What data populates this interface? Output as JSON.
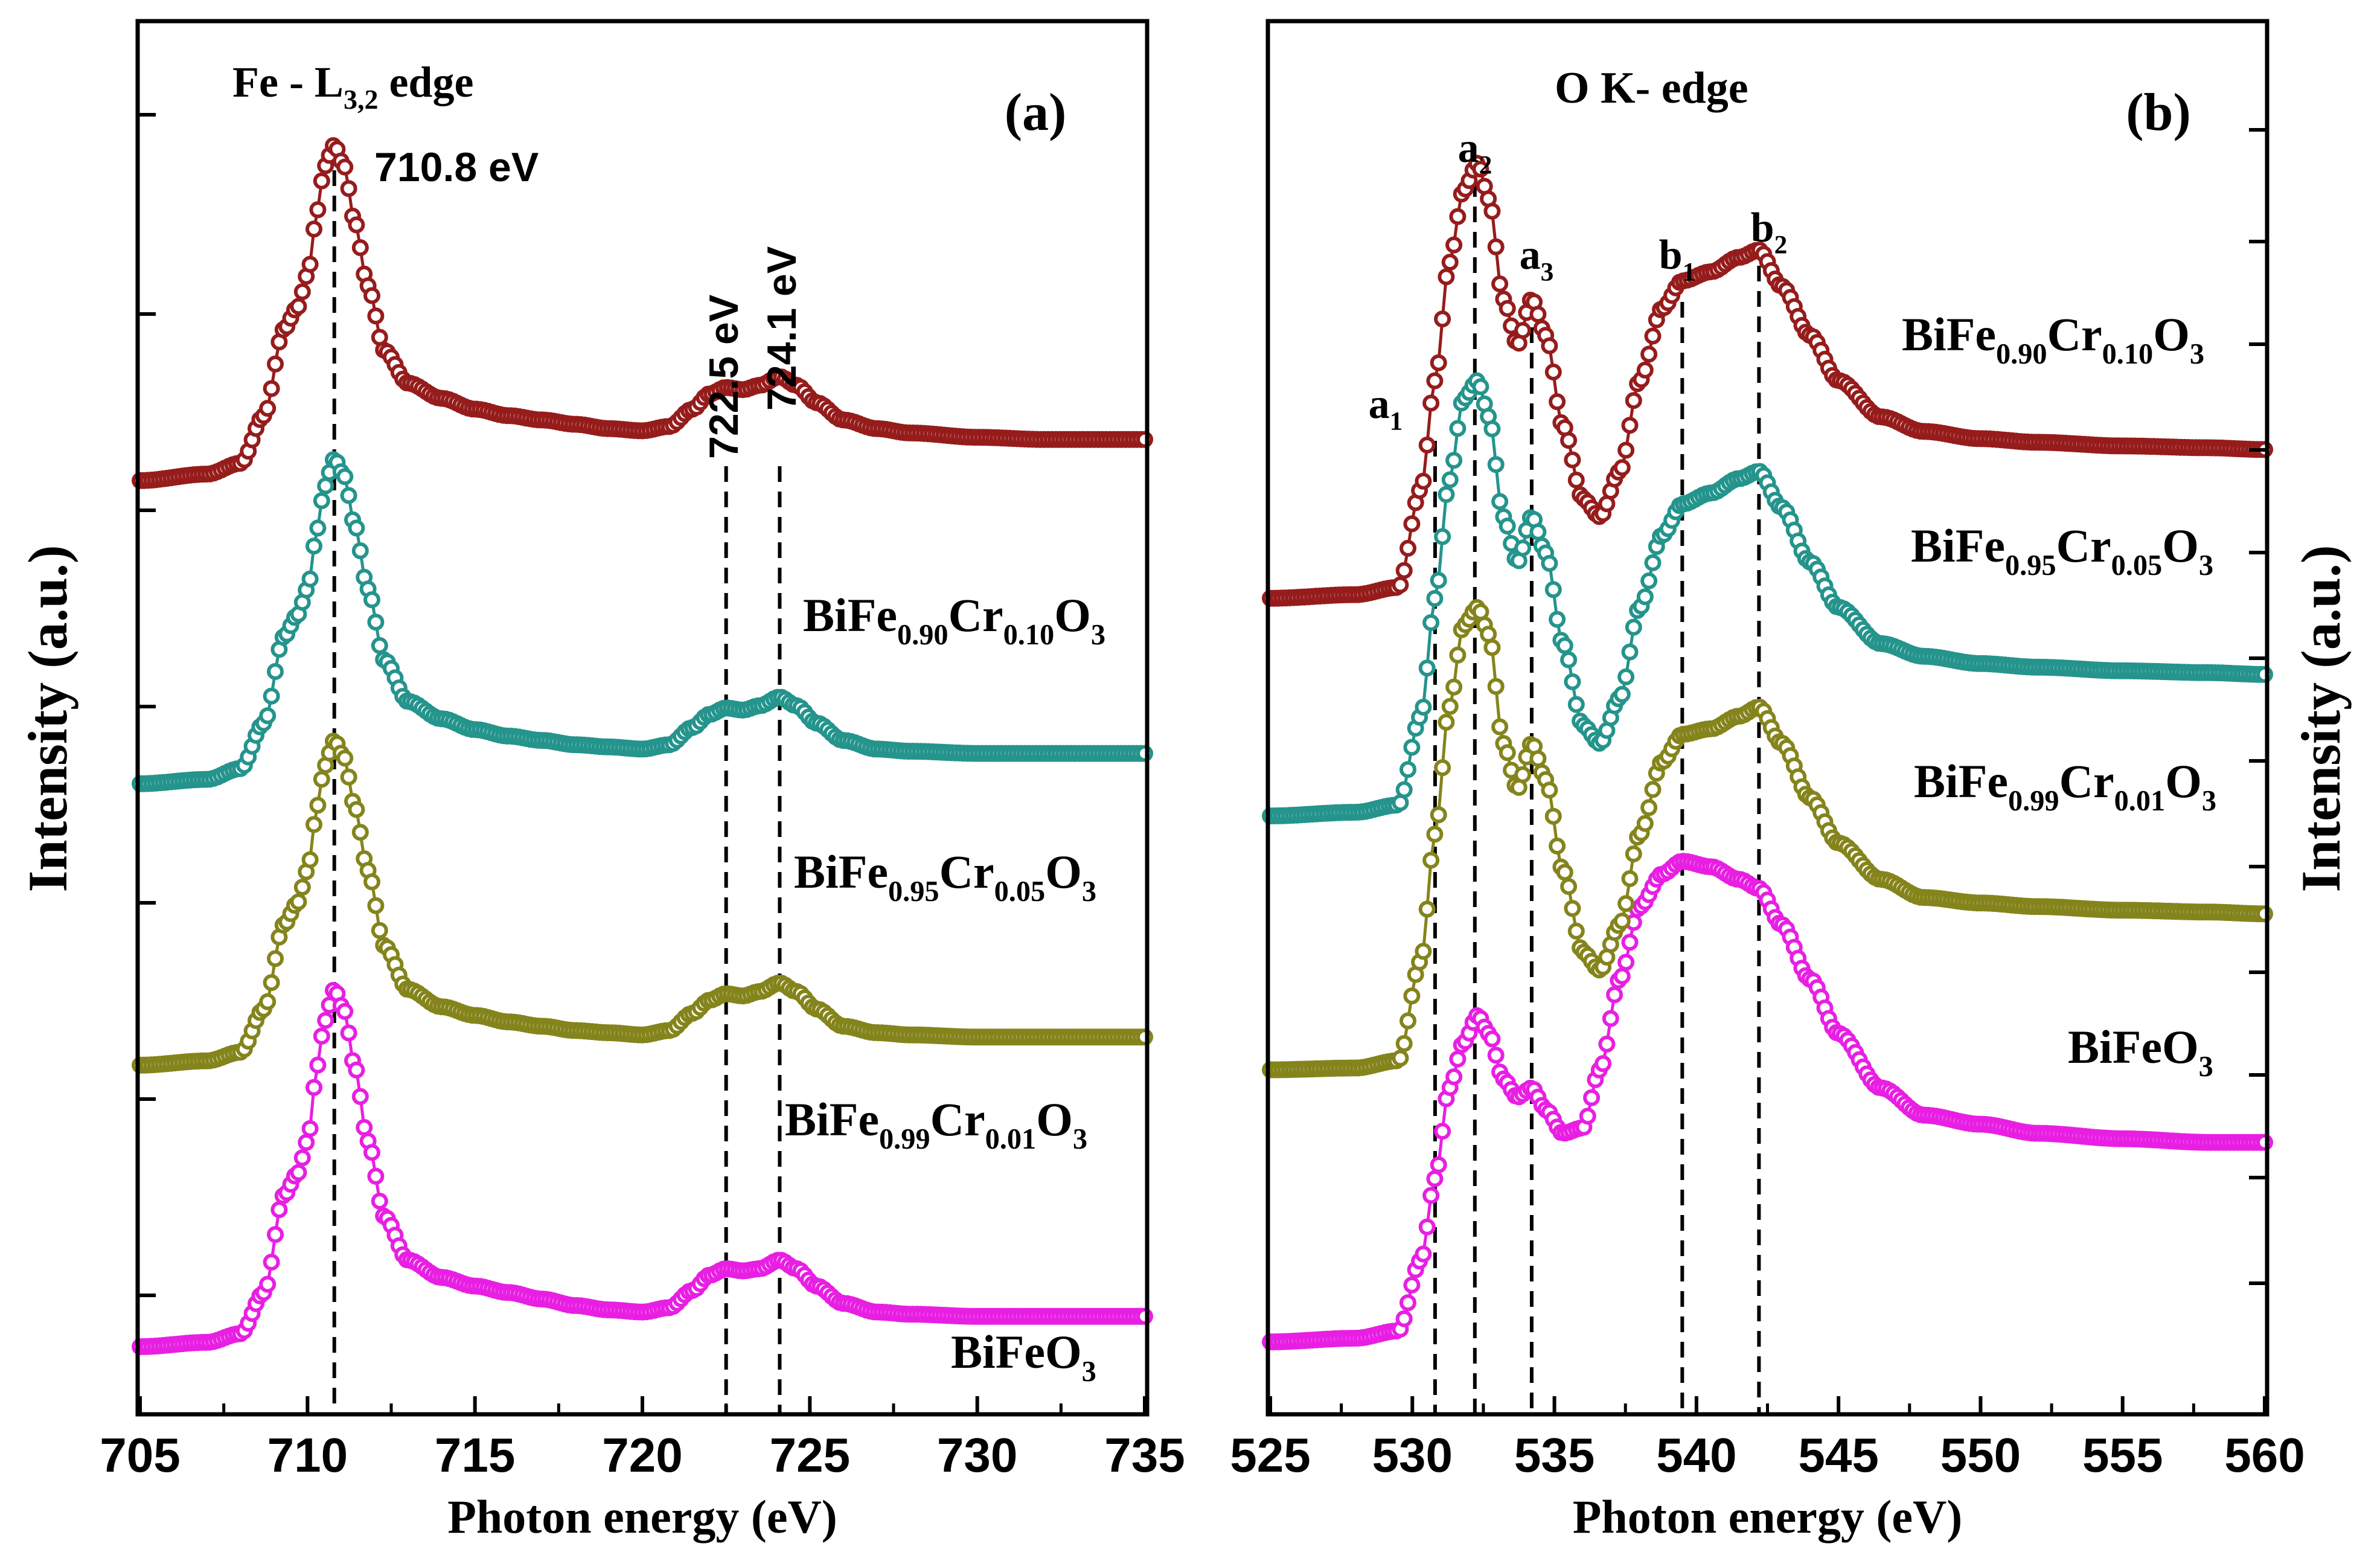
{
  "chart_data": [
    {
      "panel_label": "(a)",
      "type": "line",
      "title": "Fe - L3,2 edge",
      "title_parts": {
        "main": "Fe - L",
        "subscript": "3,2",
        "tail": " edge"
      },
      "xlabel": "Photon energy (eV)",
      "ylabel": "Intensity (a.u.)",
      "xlim": [
        705,
        735
      ],
      "ylim": [
        0,
        5.5
      ],
      "xticks": [
        "705",
        "710",
        "715",
        "720",
        "725",
        "730",
        "735"
      ],
      "xtick_values": [
        705,
        710,
        715,
        720,
        725,
        730,
        735
      ],
      "yticks_labeled": false,
      "marker_lines": [
        {
          "x": 710.8,
          "label": "710.8 eV"
        },
        {
          "x": 722.5,
          "label": "722.5 eV"
        },
        {
          "x": 724.1,
          "label": "724.1 eV"
        }
      ],
      "series": [
        {
          "name": "BiFeO3",
          "color": "#e81fe3",
          "label": {
            "parts": [
              [
                "BiFeO",
                ""
              ],
              [
                "3",
                "sub"
              ]
            ]
          },
          "x": [
            705,
            707,
            708,
            708.7,
            709.3,
            709.7,
            710.0,
            710.3,
            710.5,
            710.8,
            711.1,
            711.4,
            711.8,
            712.3,
            713.0,
            714,
            715,
            716,
            717,
            718,
            719,
            720,
            720.8,
            721.5,
            722.0,
            722.5,
            723.0,
            723.5,
            724.1,
            724.6,
            725.2,
            726,
            727,
            728,
            730,
            732,
            735
          ],
          "values": [
            0.0,
            0.02,
            0.06,
            0.25,
            0.7,
            0.8,
            0.95,
            1.3,
            1.5,
            1.65,
            1.55,
            1.3,
            0.95,
            0.6,
            0.4,
            0.32,
            0.28,
            0.25,
            0.22,
            0.19,
            0.17,
            0.16,
            0.18,
            0.26,
            0.33,
            0.36,
            0.35,
            0.36,
            0.4,
            0.36,
            0.28,
            0.2,
            0.16,
            0.15,
            0.14,
            0.14,
            0.14
          ]
        },
        {
          "name": "BiFe0.99Cr0.01O3",
          "color": "#84841c",
          "label": {
            "parts": [
              [
                "BiFe",
                ""
              ],
              [
                "0.99",
                "sub"
              ],
              [
                "Cr",
                ""
              ],
              [
                "0.01",
                "sub"
              ],
              [
                "O",
                ""
              ],
              [
                "3",
                "sub"
              ]
            ]
          },
          "x": [
            705,
            707,
            708,
            708.7,
            709.3,
            709.7,
            710.0,
            710.3,
            710.5,
            710.8,
            711.1,
            711.4,
            711.8,
            712.3,
            713.0,
            714,
            715,
            716,
            717,
            718,
            719,
            720,
            720.8,
            721.5,
            722.0,
            722.5,
            723.0,
            723.5,
            724.1,
            724.6,
            725.2,
            726,
            727,
            728,
            730,
            732,
            735
          ],
          "values": [
            1.3,
            1.32,
            1.36,
            1.56,
            1.95,
            2.05,
            2.2,
            2.5,
            2.68,
            2.8,
            2.72,
            2.5,
            2.2,
            1.85,
            1.65,
            1.57,
            1.53,
            1.5,
            1.48,
            1.46,
            1.45,
            1.44,
            1.46,
            1.54,
            1.6,
            1.63,
            1.62,
            1.64,
            1.68,
            1.64,
            1.56,
            1.48,
            1.45,
            1.44,
            1.43,
            1.43,
            1.43
          ]
        },
        {
          "name": "BiFe0.95Cr0.05O3",
          "color": "#24948c",
          "label": {
            "parts": [
              [
                "BiFe",
                ""
              ],
              [
                "0.95",
                "sub"
              ],
              [
                "Cr",
                ""
              ],
              [
                "0.05",
                "sub"
              ],
              [
                "O",
                ""
              ],
              [
                "3",
                "sub"
              ]
            ]
          },
          "x": [
            705,
            707,
            708,
            708.7,
            709.3,
            709.7,
            710.0,
            710.3,
            710.5,
            710.8,
            711.1,
            711.4,
            711.8,
            712.3,
            713.0,
            714,
            715,
            716,
            717,
            718,
            719,
            720,
            720.8,
            721.5,
            722.0,
            722.5,
            723.0,
            723.5,
            724.1,
            724.6,
            725.2,
            726,
            727,
            728,
            730,
            732,
            735
          ],
          "values": [
            2.6,
            2.62,
            2.67,
            2.88,
            3.28,
            3.38,
            3.5,
            3.78,
            3.97,
            4.1,
            4.02,
            3.8,
            3.5,
            3.17,
            2.98,
            2.9,
            2.85,
            2.82,
            2.8,
            2.78,
            2.77,
            2.76,
            2.78,
            2.86,
            2.92,
            2.95,
            2.94,
            2.96,
            3.0,
            2.96,
            2.88,
            2.8,
            2.76,
            2.75,
            2.74,
            2.74,
            2.74
          ]
        },
        {
          "name": "BiFe0.90Cr0.10O3",
          "color": "#961c1c",
          "label": {
            "parts": [
              [
                "BiFe",
                ""
              ],
              [
                "0.90",
                "sub"
              ],
              [
                "Cr",
                ""
              ],
              [
                "0.10",
                "sub"
              ],
              [
                "O",
                ""
              ],
              [
                "3",
                "sub"
              ]
            ]
          },
          "x": [
            705,
            707,
            708,
            708.7,
            709.3,
            709.7,
            710.0,
            710.3,
            710.5,
            710.8,
            711.1,
            711.4,
            711.8,
            712.3,
            713.0,
            714,
            715,
            716,
            717,
            718,
            719,
            720,
            720.8,
            721.5,
            722.0,
            722.5,
            723.0,
            723.5,
            724.1,
            724.6,
            725.2,
            726,
            727,
            728,
            730,
            732,
            735
          ],
          "values": [
            4.0,
            4.03,
            4.08,
            4.3,
            4.7,
            4.8,
            4.95,
            5.25,
            5.45,
            5.55,
            5.45,
            5.2,
            4.9,
            4.6,
            4.45,
            4.38,
            4.33,
            4.3,
            4.28,
            4.26,
            4.24,
            4.23,
            4.25,
            4.33,
            4.4,
            4.43,
            4.42,
            4.44,
            4.48,
            4.44,
            4.36,
            4.28,
            4.24,
            4.22,
            4.2,
            4.19,
            4.19
          ]
        }
      ]
    },
    {
      "panel_label": "(b)",
      "type": "line",
      "title": "O K- edge",
      "xlabel": "Photon energy (eV)",
      "ylabel": "Intensity (a.u.)",
      "xlim": [
        525,
        560
      ],
      "ylim": [
        0,
        6.3
      ],
      "xticks": [
        "525",
        "530",
        "535",
        "540",
        "545",
        "550",
        "555",
        "560"
      ],
      "xtick_values": [
        525,
        530,
        535,
        540,
        545,
        550,
        555,
        560
      ],
      "yticks_labeled": false,
      "marker_lines": [
        {
          "x": 530.8,
          "label": "a1",
          "label_parts": [
            [
              "a",
              ""
            ],
            [
              "1",
              "sub"
            ]
          ]
        },
        {
          "x": 532.2,
          "label": "a2",
          "label_parts": [
            [
              "a",
              ""
            ],
            [
              "2",
              "sub"
            ]
          ]
        },
        {
          "x": 534.2,
          "label": "a3",
          "label_parts": [
            [
              "a",
              ""
            ],
            [
              "3",
              "sub"
            ]
          ]
        },
        {
          "x": 539.5,
          "label": "b1",
          "label_parts": [
            [
              "b",
              ""
            ],
            [
              "1",
              "sub"
            ]
          ]
        },
        {
          "x": 542.2,
          "label": "b2",
          "label_parts": [
            [
              "b",
              ""
            ],
            [
              "2",
              "sub"
            ]
          ]
        }
      ],
      "series": [
        {
          "name": "BiFeO3",
          "color": "#e81fe3",
          "label": {
            "parts": [
              [
                "BiFeO",
                ""
              ],
              [
                "3",
                "sub"
              ]
            ]
          },
          "x": [
            525,
            528,
            529.5,
            530.3,
            530.8,
            531.3,
            531.8,
            532.3,
            532.7,
            533.2,
            533.7,
            534.2,
            534.7,
            535.3,
            536.0,
            536.6,
            537.3,
            538.0,
            538.8,
            539.5,
            540.5,
            541.5,
            542.2,
            543.0,
            544.0,
            545.0,
            546.5,
            548,
            550,
            552,
            555,
            558,
            560
          ],
          "values": [
            0.0,
            0.02,
            0.06,
            0.45,
            0.9,
            1.4,
            1.65,
            1.8,
            1.7,
            1.45,
            1.35,
            1.4,
            1.28,
            1.15,
            1.18,
            1.5,
            2.0,
            2.4,
            2.58,
            2.65,
            2.62,
            2.55,
            2.5,
            2.3,
            2.0,
            1.7,
            1.4,
            1.25,
            1.2,
            1.15,
            1.12,
            1.1,
            1.1
          ]
        },
        {
          "name": "BiFe0.99Cr0.01O3",
          "color": "#84841c",
          "label": {
            "parts": [
              [
                "BiFe",
                ""
              ],
              [
                "0.99",
                "sub"
              ],
              [
                "Cr",
                ""
              ],
              [
                "0.01",
                "sub"
              ],
              [
                "O",
                ""
              ],
              [
                "3",
                "sub"
              ]
            ]
          },
          "x": [
            525,
            528,
            529.5,
            530.3,
            530.8,
            531.3,
            531.8,
            532.3,
            532.7,
            533.2,
            533.7,
            534.2,
            534.7,
            535.3,
            536.0,
            536.6,
            537.3,
            538.0,
            538.8,
            539.5,
            540.5,
            541.5,
            542.2,
            543.0,
            544.0,
            545.0,
            546.5,
            548,
            550,
            552,
            555,
            558,
            560
          ],
          "values": [
            1.5,
            1.51,
            1.55,
            2.1,
            2.8,
            3.5,
            3.95,
            4.05,
            3.9,
            3.3,
            3.05,
            3.3,
            3.1,
            2.6,
            2.15,
            2.05,
            2.3,
            2.8,
            3.2,
            3.35,
            3.38,
            3.45,
            3.5,
            3.3,
            3.0,
            2.75,
            2.55,
            2.45,
            2.42,
            2.4,
            2.38,
            2.37,
            2.36
          ]
        },
        {
          "name": "BiFe0.95Cr0.05O3",
          "color": "#24948c",
          "label": {
            "parts": [
              [
                "BiFe",
                ""
              ],
              [
                "0.95",
                "sub"
              ],
              [
                "Cr",
                ""
              ],
              [
                "0.05",
                "sub"
              ],
              [
                "O",
                ""
              ],
              [
                "3",
                "sub"
              ]
            ]
          },
          "x": [
            525,
            528,
            529.5,
            530.3,
            530.8,
            531.3,
            531.8,
            532.3,
            532.7,
            533.2,
            533.7,
            534.2,
            534.7,
            535.3,
            536.0,
            536.6,
            537.3,
            538.0,
            538.8,
            539.5,
            540.5,
            541.5,
            542.2,
            543.0,
            544.0,
            545.0,
            546.5,
            548,
            550,
            552,
            555,
            558,
            560
          ],
          "values": [
            2.9,
            2.92,
            2.96,
            3.45,
            4.1,
            4.75,
            5.2,
            5.3,
            5.1,
            4.55,
            4.3,
            4.55,
            4.35,
            3.85,
            3.4,
            3.3,
            3.55,
            4.05,
            4.45,
            4.62,
            4.68,
            4.76,
            4.8,
            4.6,
            4.3,
            4.05,
            3.85,
            3.78,
            3.74,
            3.72,
            3.7,
            3.69,
            3.68
          ]
        },
        {
          "name": "BiFe0.90Cr0.10O3",
          "color": "#961c1c",
          "label": {
            "parts": [
              [
                "BiFe",
                ""
              ],
              [
                "0.90",
                "sub"
              ],
              [
                "Cr",
                ""
              ],
              [
                "0.10",
                "sub"
              ],
              [
                "O",
                ""
              ],
              [
                "3",
                "sub"
              ]
            ]
          },
          "x": [
            525,
            528,
            529.5,
            530.3,
            530.8,
            531.3,
            531.8,
            532.3,
            532.7,
            533.2,
            533.7,
            534.2,
            534.7,
            535.3,
            536.0,
            536.6,
            537.3,
            538.0,
            538.8,
            539.5,
            540.5,
            541.5,
            542.2,
            543.0,
            544.0,
            545.0,
            546.5,
            548,
            550,
            552,
            555,
            558,
            560
          ],
          "values": [
            4.1,
            4.12,
            4.16,
            4.7,
            5.3,
            5.95,
            6.35,
            6.5,
            6.3,
            5.75,
            5.5,
            5.75,
            5.55,
            5.05,
            4.65,
            4.55,
            4.8,
            5.3,
            5.7,
            5.85,
            5.9,
            5.98,
            6.02,
            5.82,
            5.55,
            5.3,
            5.1,
            5.02,
            4.98,
            4.96,
            4.94,
            4.93,
            4.92
          ]
        }
      ]
    }
  ]
}
